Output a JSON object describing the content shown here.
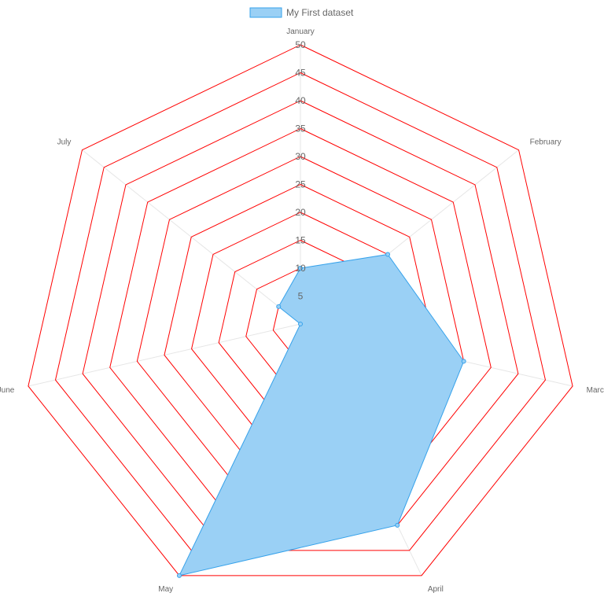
{
  "chart_data": {
    "type": "radar",
    "labels": [
      "January",
      "February",
      "March",
      "April",
      "May",
      "June",
      "July"
    ],
    "series": [
      {
        "name": "My First dataset",
        "values": [
          10,
          20,
          30,
          40,
          50,
          0,
          5
        ],
        "fill_color": "#9ad0f5",
        "border_color": "#36a2eb"
      }
    ],
    "scale": {
      "min": 0,
      "max": 50,
      "step": 5,
      "ticks": [
        "5",
        "10",
        "15",
        "20",
        "25",
        "30",
        "35",
        "40",
        "45",
        "50"
      ]
    },
    "grid_color": "#ff0000",
    "angle_line_color": "#e6e6e6",
    "legend_position": "top",
    "grid": true
  }
}
